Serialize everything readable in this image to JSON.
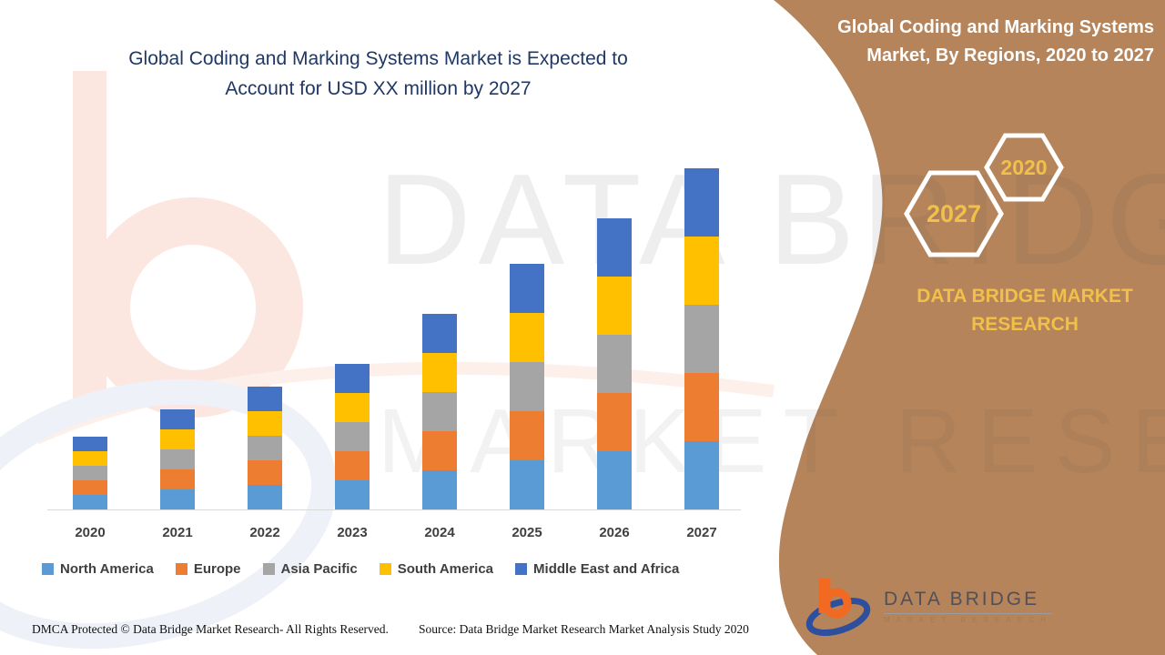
{
  "main_title": {
    "line1": "Global Coding and Marking Systems Market is Expected to",
    "line2": "Account for USD XX million by 2027"
  },
  "right_panel": {
    "title_line1": "Global Coding and Marking Systems",
    "title_line2": "Market, By Regions, 2020 to 2027",
    "hexagon_large_label": "2027",
    "hexagon_small_label": "2020",
    "brand_heading": "DATA BRIDGE MARKET RESEARCH"
  },
  "logo": {
    "name": "DATA BRIDGE",
    "subtitle": "MARKET RESEARCH"
  },
  "watermark": {
    "line1": "DATA BRIDGE",
    "line2": "MARKET RESEARCH"
  },
  "footer": {
    "left": "DMCA Protected © Data Bridge Market Research- All Rights Reserved.",
    "right": "Source: Data Bridge Market Research Market Analysis Study 2020"
  },
  "colors": {
    "panel_brown": "#b5845a",
    "accent_gold": "#f0c04a",
    "title_navy": "#1f3864",
    "axis_line": "#d9d9d9",
    "label_gray": "#3f3f3f"
  },
  "chart_data": {
    "type": "bar",
    "stacked": true,
    "title": "Global Coding and Marking Systems Market is Expected to Account for USD XX million by 2027",
    "categories": [
      "2020",
      "2021",
      "2022",
      "2023",
      "2024",
      "2025",
      "2026",
      "2027"
    ],
    "series": [
      {
        "name": "North America",
        "color": "#5B9BD5",
        "values": [
          16,
          22,
          27,
          32,
          43,
          54,
          64,
          75
        ]
      },
      {
        "name": "Europe",
        "color": "#ED7D31",
        "values": [
          16,
          22,
          27,
          32,
          43,
          54,
          64,
          75
        ]
      },
      {
        "name": "Asia Pacific",
        "color": "#A5A5A5",
        "values": [
          16,
          22,
          27,
          32,
          43,
          54,
          64,
          75
        ]
      },
      {
        "name": "South America",
        "color": "#FFC000",
        "values": [
          16,
          22,
          27,
          32,
          43,
          54,
          64,
          75
        ]
      },
      {
        "name": "Middle East and Africa",
        "color": "#4472C4",
        "values": [
          16,
          22,
          27,
          32,
          43,
          54,
          64,
          75
        ]
      }
    ],
    "xlabel": "",
    "ylabel": "",
    "value_axis_visible": false,
    "data_labels_visible": false,
    "grid": false,
    "legend_position": "bottom",
    "units": "relative (chart values are intentionally unlabeled, shown as USD XX million)"
  }
}
